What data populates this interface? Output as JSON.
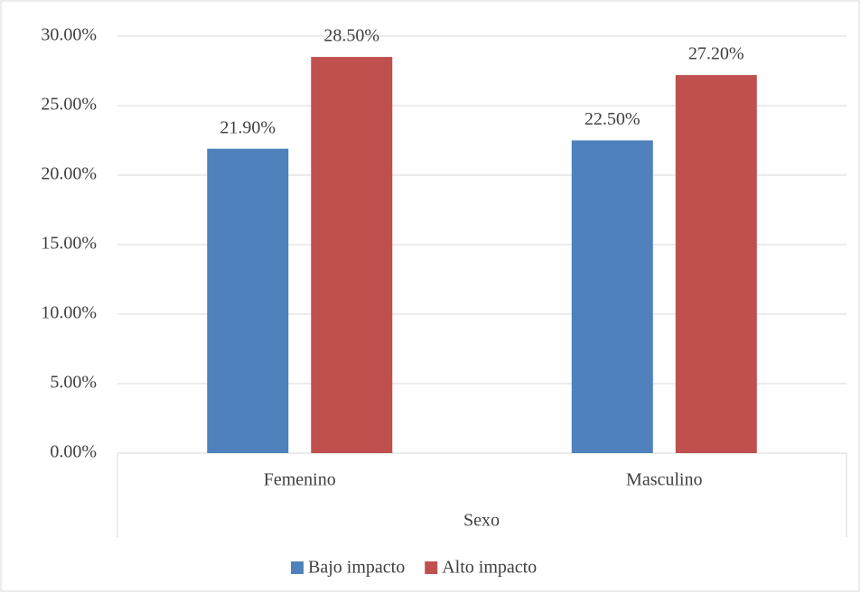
{
  "chart_data": {
    "type": "bar",
    "x_label": "Sexo",
    "categories": [
      "Femenino",
      "Masculino"
    ],
    "series": [
      {
        "name": "Bajo impacto",
        "color": "#4f81bd",
        "values": [
          21.9,
          22.5
        ],
        "value_labels": [
          "21.90%",
          "22.50%"
        ]
      },
      {
        "name": "Alto impacto",
        "color": "#c0504d",
        "values": [
          28.5,
          27.2
        ],
        "value_labels": [
          "28.50%",
          "27.20%"
        ]
      }
    ],
    "ylim": [
      0,
      30
    ],
    "yticks": [
      {
        "value": 0,
        "label": "0.00%"
      },
      {
        "value": 5,
        "label": "5.00%"
      },
      {
        "value": 10,
        "label": "10.00%"
      },
      {
        "value": 15,
        "label": "15.00%"
      },
      {
        "value": 20,
        "label": "20.00%"
      },
      {
        "value": 25,
        "label": "25.00%"
      },
      {
        "value": 30,
        "label": "30.00%"
      }
    ],
    "grid": true,
    "legend": "bottom"
  }
}
